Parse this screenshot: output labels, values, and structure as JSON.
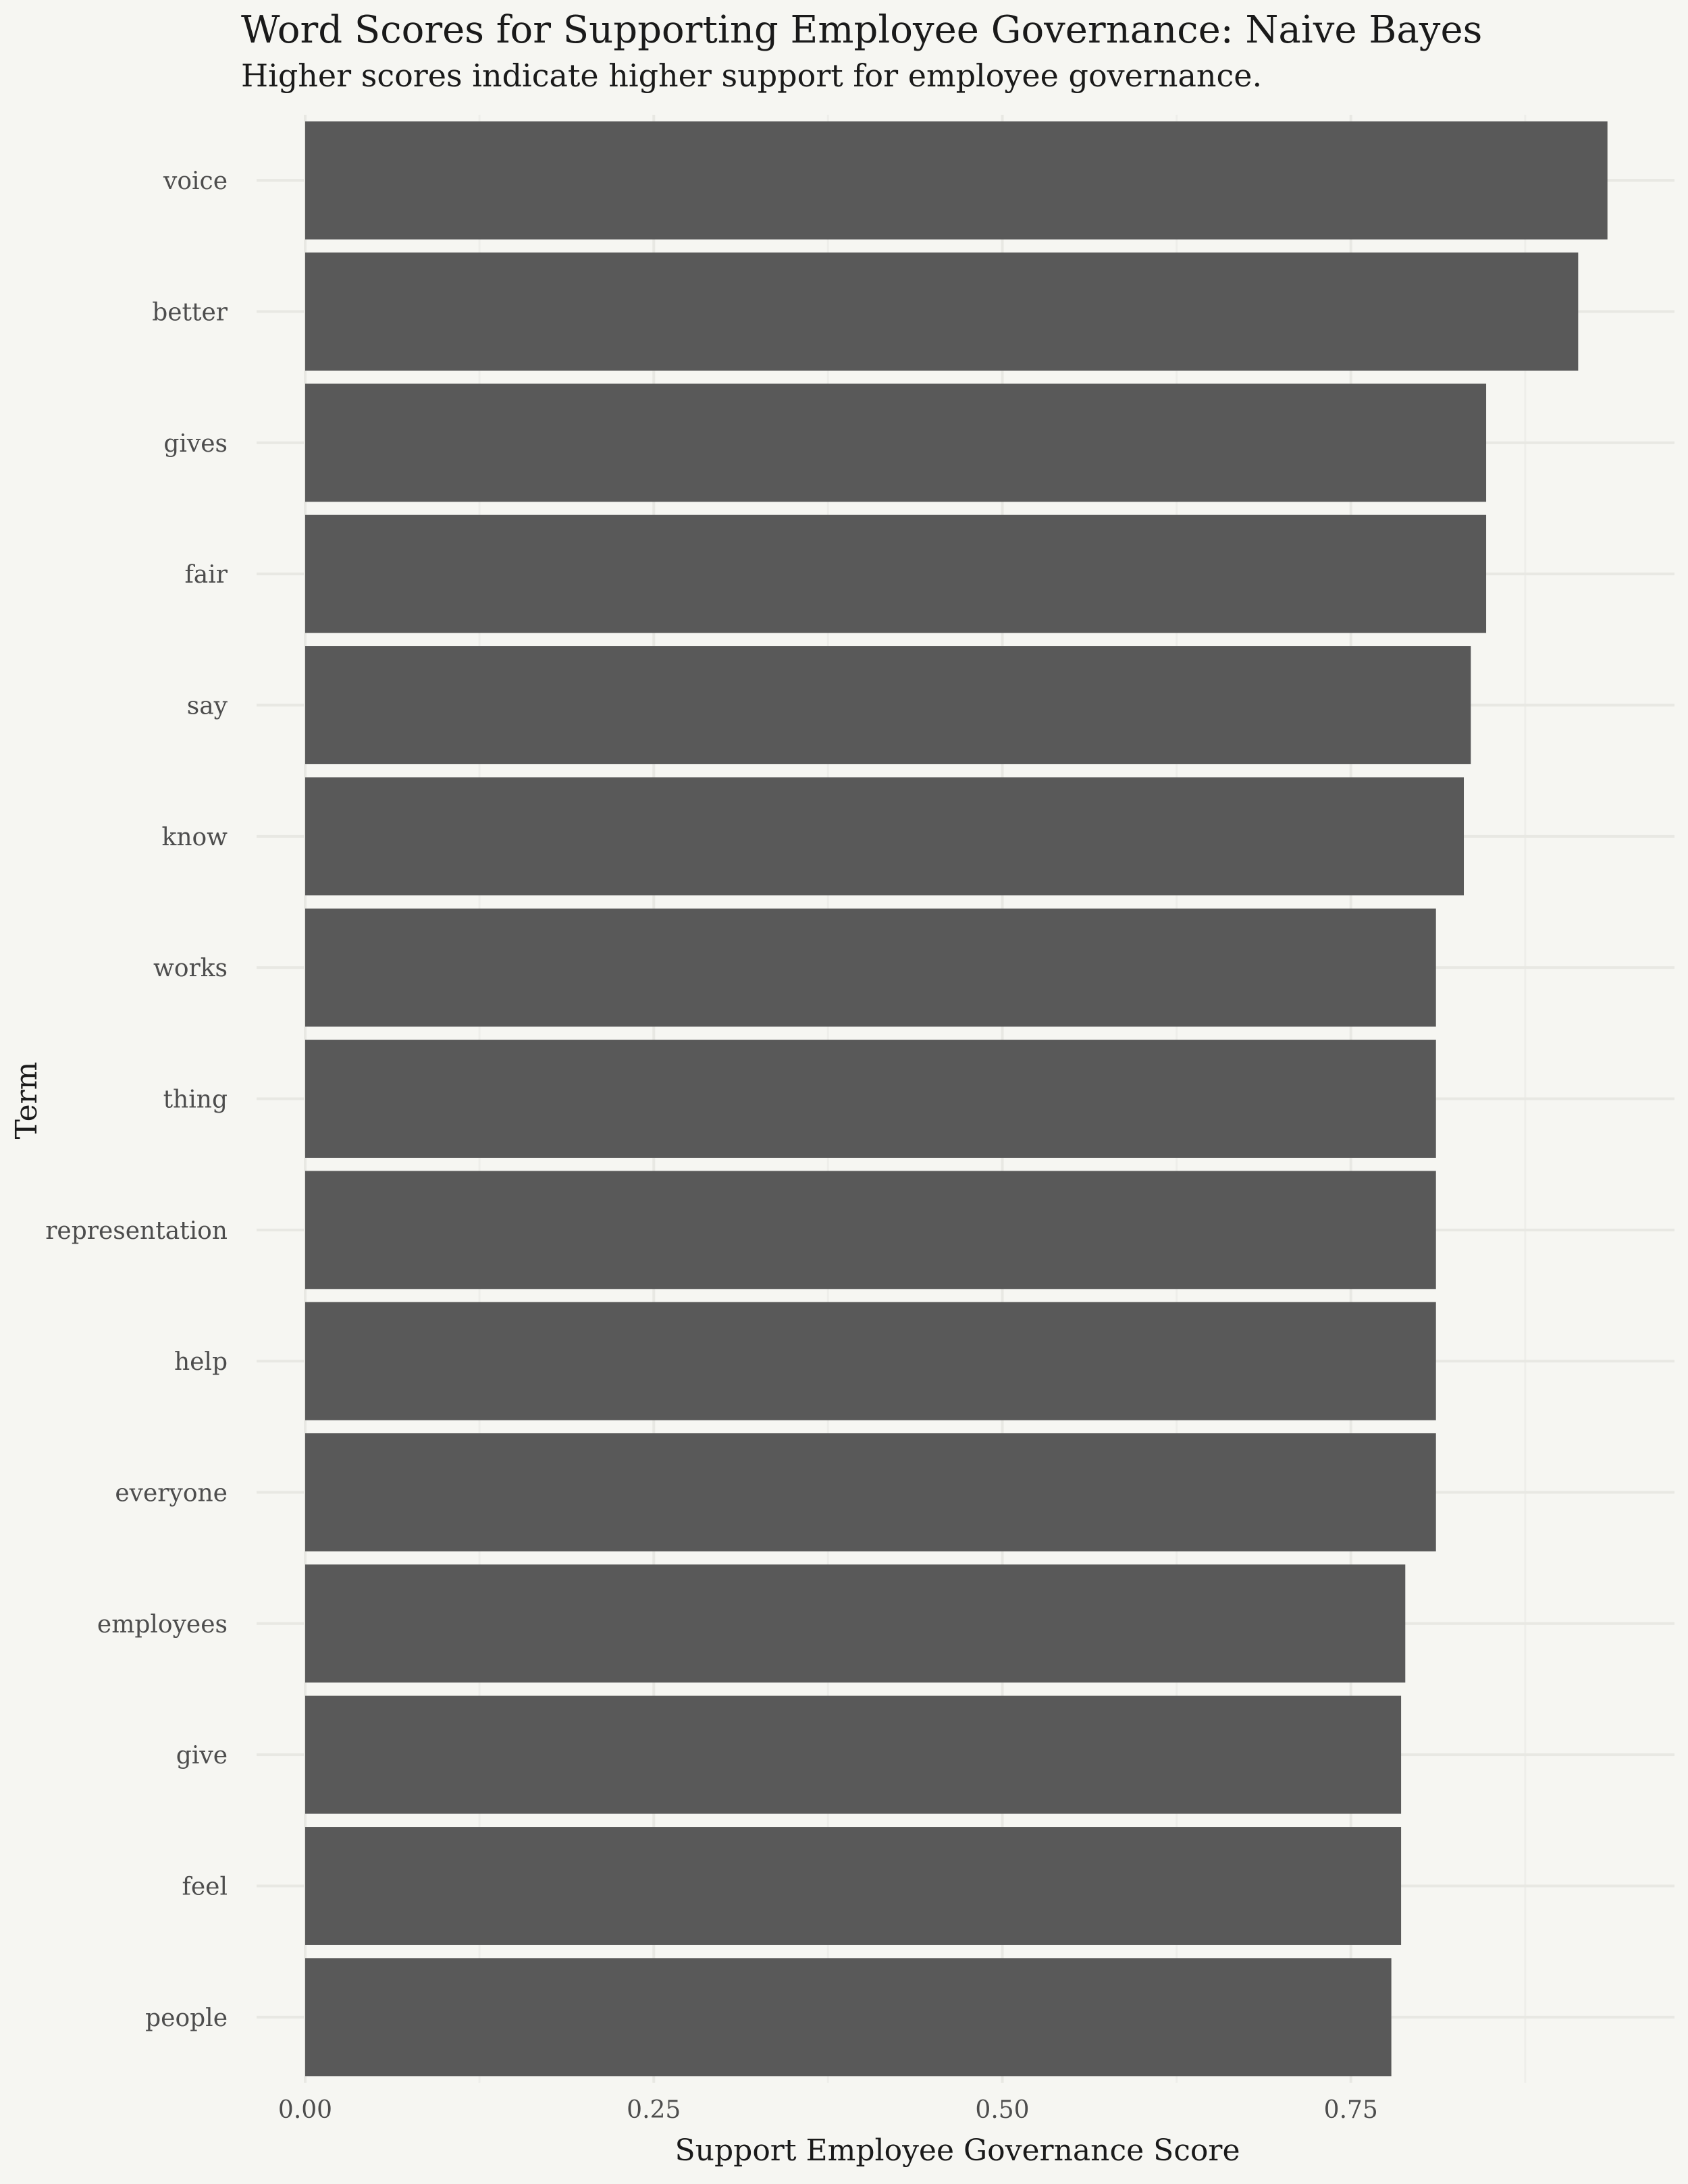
{
  "chart_data": {
    "type": "bar",
    "orientation": "horizontal",
    "title": "Word Scores for Supporting Employee Governance: Naive Bayes",
    "subtitle": "Higher scores indicate higher support for employee governance.",
    "xlabel": "Support Employee Governance Score",
    "ylabel": "Term",
    "xlim": [
      0,
      0.93
    ],
    "xticks": [
      0,
      0.25,
      0.5,
      0.75
    ],
    "xtick_labels": [
      "0.00",
      "0.25",
      "0.50",
      "0.75"
    ],
    "grid": true,
    "bar_color": "#595959",
    "background_color": "#f6f6f2",
    "categories": [
      "voice",
      "better",
      "gives",
      "fair",
      "say",
      "know",
      "works",
      "thing",
      "representation",
      "help",
      "everyone",
      "employees",
      "give",
      "feel",
      "people"
    ],
    "values": [
      0.934,
      0.913,
      0.847,
      0.847,
      0.836,
      0.831,
      0.811,
      0.811,
      0.811,
      0.811,
      0.811,
      0.789,
      0.786,
      0.786,
      0.779
    ]
  }
}
